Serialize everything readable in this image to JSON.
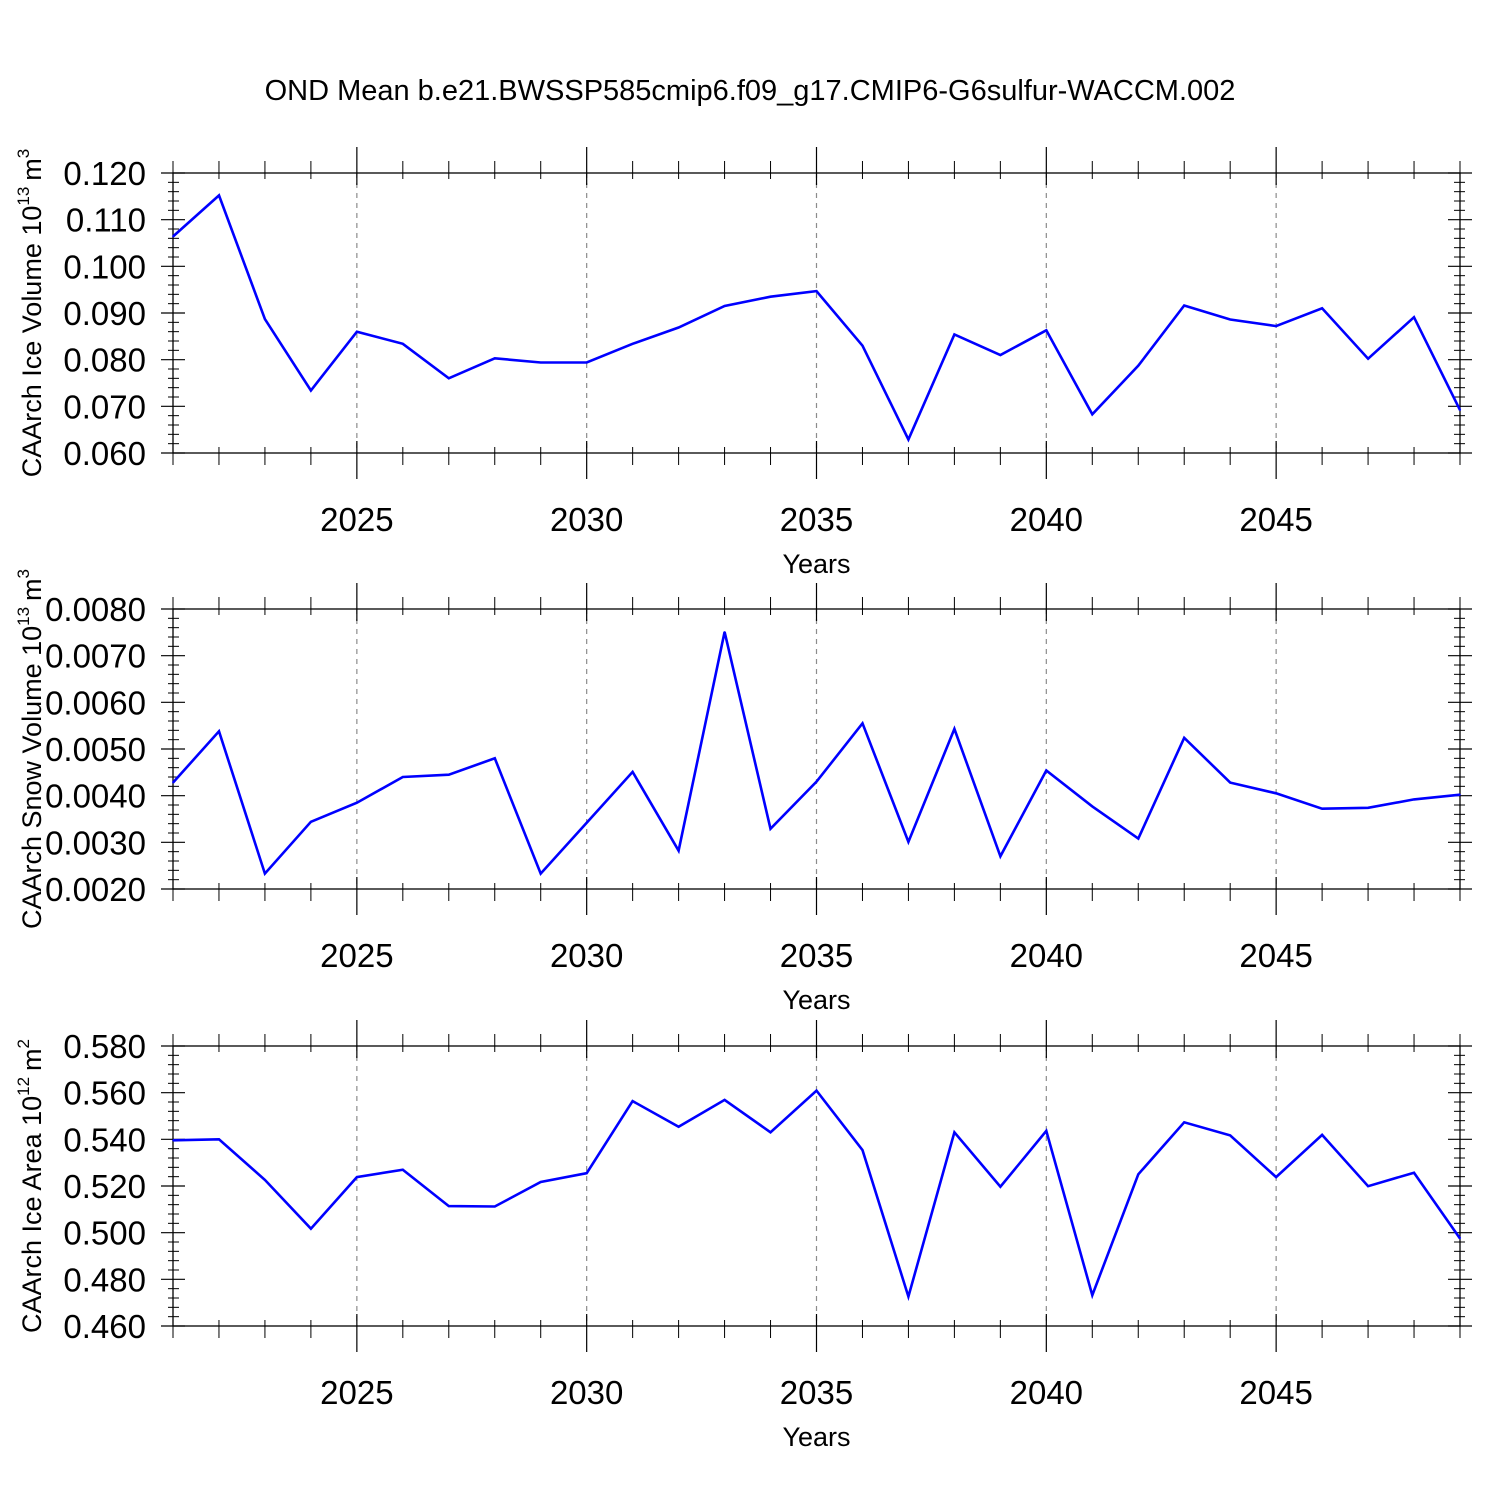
{
  "figure": {
    "title": "OND Mean b.e21.BWSSP585cmip6.f09_g17.CMIP6-G6sulfur-WACCM.002"
  },
  "colors": {
    "series": "#0000ff",
    "axis": "#000000",
    "grid": "#8c8c8c"
  },
  "chart_data": [
    {
      "type": "line",
      "title": "",
      "xlabel": "Years",
      "ylabel_main": "CAArch Ice Volume 10",
      "ylabel_exp": "13",
      "ylabel_unit": "m",
      "ylabel_unit_exp": "3",
      "xlim": [
        2021,
        2049
      ],
      "ylim": [
        0.06,
        0.12
      ],
      "xticks": [
        2025,
        2030,
        2035,
        2040,
        2045
      ],
      "xtick_labels": [
        "2025",
        "2030",
        "2035",
        "2040",
        "2045"
      ],
      "yticks": [
        0.06,
        0.07,
        0.08,
        0.09,
        0.1,
        0.11,
        0.12
      ],
      "ytick_labels": [
        "0.060",
        "0.070",
        "0.080",
        "0.090",
        "0.100",
        "0.110",
        "0.120"
      ],
      "grid": "vertical-dashed",
      "x": [
        2021,
        2022,
        2023,
        2024,
        2025,
        2026,
        2027,
        2028,
        2029,
        2030,
        2031,
        2032,
        2033,
        2034,
        2035,
        2036,
        2037,
        2038,
        2039,
        2040,
        2041,
        2042,
        2043,
        2044,
        2045,
        2046,
        2047,
        2048,
        2049
      ],
      "y": [
        0.1064,
        0.1152,
        0.0887,
        0.0734,
        0.086,
        0.0834,
        0.076,
        0.0803,
        0.0794,
        0.0794,
        0.0834,
        0.0869,
        0.0915,
        0.0935,
        0.0947,
        0.083,
        0.0629,
        0.0854,
        0.081,
        0.0863,
        0.0683,
        0.0787,
        0.0916,
        0.0886,
        0.0872,
        0.091,
        0.0802,
        0.0891,
        0.0692
      ]
    },
    {
      "type": "line",
      "title": "",
      "xlabel": "Years",
      "ylabel_main": "CAArch Snow Volume 10",
      "ylabel_exp": "13",
      "ylabel_unit": "m",
      "ylabel_unit_exp": "3",
      "xlim": [
        2021,
        2049
      ],
      "ylim": [
        0.002,
        0.008
      ],
      "xticks": [
        2025,
        2030,
        2035,
        2040,
        2045
      ],
      "xtick_labels": [
        "2025",
        "2030",
        "2035",
        "2040",
        "2045"
      ],
      "yticks": [
        0.002,
        0.003,
        0.004,
        0.005,
        0.006,
        0.007,
        0.008
      ],
      "ytick_labels": [
        "0.0020",
        "0.0030",
        "0.0040",
        "0.0050",
        "0.0060",
        "0.0070",
        "0.0080"
      ],
      "grid": "vertical-dashed",
      "x": [
        2021,
        2022,
        2023,
        2024,
        2025,
        2026,
        2027,
        2028,
        2029,
        2030,
        2031,
        2032,
        2033,
        2034,
        2035,
        2036,
        2037,
        2038,
        2039,
        2040,
        2041,
        2042,
        2043,
        2044,
        2045,
        2046,
        2047,
        2048,
        2049
      ],
      "y": [
        0.00428,
        0.00538,
        0.00233,
        0.00344,
        0.00385,
        0.0044,
        0.00445,
        0.0048,
        0.00233,
        0.00342,
        0.00451,
        0.00282,
        0.00751,
        0.00329,
        0.0043,
        0.00555,
        0.00301,
        0.00543,
        0.0027,
        0.00454,
        0.00377,
        0.00308,
        0.00524,
        0.00428,
        0.00405,
        0.00372,
        0.00374,
        0.00392,
        0.00402
      ]
    },
    {
      "type": "line",
      "title": "",
      "xlabel": "Years",
      "ylabel_main": "CAArch Ice Area 10",
      "ylabel_exp": "12",
      "ylabel_unit": "m",
      "ylabel_unit_exp": "2",
      "xlim": [
        2021,
        2049
      ],
      "ylim": [
        0.46,
        0.58
      ],
      "xticks": [
        2025,
        2030,
        2035,
        2040,
        2045
      ],
      "xtick_labels": [
        "2025",
        "2030",
        "2035",
        "2040",
        "2045"
      ],
      "yticks": [
        0.46,
        0.48,
        0.5,
        0.52,
        0.54,
        0.56,
        0.58
      ],
      "ytick_labels": [
        "0.460",
        "0.480",
        "0.500",
        "0.520",
        "0.540",
        "0.560",
        "0.580"
      ],
      "grid": "vertical-dashed",
      "x": [
        2021,
        2022,
        2023,
        2024,
        2025,
        2026,
        2027,
        2028,
        2029,
        2030,
        2031,
        2032,
        2033,
        2034,
        2035,
        2036,
        2037,
        2038,
        2039,
        2040,
        2041,
        2042,
        2043,
        2044,
        2045,
        2046,
        2047,
        2048,
        2049
      ],
      "y": [
        0.5396,
        0.54,
        0.5226,
        0.5017,
        0.5238,
        0.527,
        0.5114,
        0.5112,
        0.5217,
        0.5255,
        0.5564,
        0.5454,
        0.5569,
        0.543,
        0.5609,
        0.5354,
        0.4726,
        0.543,
        0.5197,
        0.5436,
        0.4732,
        0.525,
        0.5473,
        0.5417,
        0.5238,
        0.5419,
        0.5199,
        0.5257,
        0.4975
      ]
    }
  ]
}
